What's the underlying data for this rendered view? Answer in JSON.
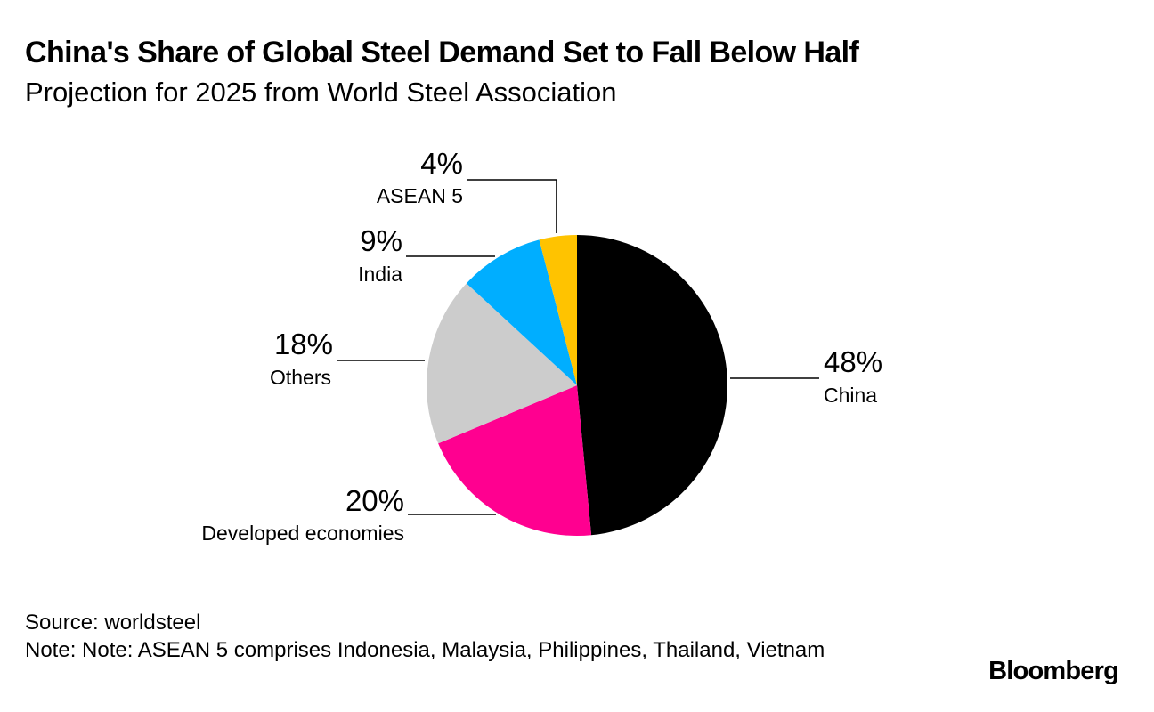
{
  "header": {
    "title": "China's Share of Global Steel Demand Set to Fall Below Half",
    "subtitle": "Projection for 2025 from World Steel Association"
  },
  "chart_data": {
    "type": "pie",
    "title": "China's Share of Global Steel Demand Set to Fall Below Half",
    "subtitle": "Projection for 2025 from World Steel Association",
    "slices": [
      {
        "label": "China",
        "value": 48,
        "value_label": "48%",
        "color": "#000000"
      },
      {
        "label": "Developed economies",
        "value": 20,
        "value_label": "20%",
        "color": "#ff0090"
      },
      {
        "label": "Others",
        "value": 18,
        "value_label": "18%",
        "color": "#cccccc"
      },
      {
        "label": "India",
        "value": 9,
        "value_label": "9%",
        "color": "#00aeff"
      },
      {
        "label": "ASEAN 5",
        "value": 4,
        "value_label": "4%",
        "color": "#ffc300"
      }
    ],
    "start": "12 o'clock",
    "direction": "clockwise"
  },
  "footer": {
    "source": "Source: worldsteel",
    "note": "Note: Note: ASEAN 5 comprises Indonesia, Malaysia, Philippines, Thailand, Vietnam"
  },
  "branding": {
    "logo_text": "Bloomberg"
  }
}
